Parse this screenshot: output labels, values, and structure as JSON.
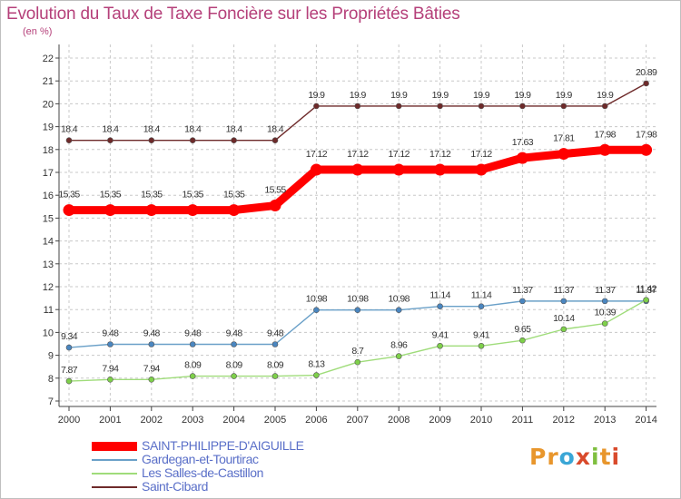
{
  "header": {
    "title": "Evolution du Taux de Taxe Foncière sur les Propriétés Bâties",
    "unit": "(en %)"
  },
  "colors": {
    "title": "#b5407a",
    "grid": "#c8c8c8",
    "axis": "#444444",
    "legend_text": "#5a6fc8"
  },
  "logo": {
    "letters": [
      "P",
      "r",
      "o",
      "x",
      "i",
      "t",
      "i"
    ],
    "colors": [
      "#e8962c",
      "#e8962c",
      "#3aa6d6",
      "#d94a2b",
      "#7fbf3f",
      "#e8962c",
      "#d94a2b"
    ]
  },
  "chart_data": {
    "type": "line",
    "title": "Evolution du Taux de Taxe Foncière sur les Propriétés Bâties",
    "ylabel": "(en %)",
    "xlabel": "",
    "ylim": [
      7,
      22
    ],
    "yticks": [
      7,
      8,
      9,
      10,
      11,
      12,
      13,
      14,
      15,
      16,
      17,
      18,
      19,
      20,
      21,
      22
    ],
    "grid": true,
    "categories": [
      "2000",
      "2001",
      "2002",
      "2003",
      "2004",
      "2005",
      "2006",
      "2007",
      "2008",
      "2009",
      "2010",
      "2011",
      "2012",
      "2013",
      "2014"
    ],
    "series": [
      {
        "name": "SAINT-PHILIPPE-D'AIGUILLE",
        "color": "#ff0000",
        "marker": "#ff0000",
        "style": "thick",
        "values": [
          15.35,
          15.35,
          15.35,
          15.35,
          15.35,
          15.55,
          17.12,
          17.12,
          17.12,
          17.12,
          17.12,
          17.63,
          17.81,
          17.98,
          17.98
        ],
        "labels": [
          "15.35",
          "15.35",
          "15.35",
          "15.35",
          "15.35",
          "15.55",
          "17.12",
          "17.12",
          "17.12",
          "17.12",
          "17.12",
          "17.63",
          "17.81",
          "17.98",
          "17.98"
        ]
      },
      {
        "name": "Gardegan-et-Tourtirac",
        "color": "#6aa0c8",
        "marker": "#4a86c0",
        "style": "normal",
        "values": [
          9.34,
          9.48,
          9.48,
          9.48,
          9.48,
          9.48,
          10.98,
          10.98,
          10.98,
          11.14,
          11.14,
          11.37,
          11.37,
          11.37,
          11.37
        ],
        "labels": [
          "9.34",
          "9.48",
          "9.48",
          "9.48",
          "9.48",
          "9.48",
          "10.98",
          "10.98",
          "10.98",
          "11.14",
          "11.14",
          "11.37",
          "11.37",
          "11.37",
          "11.37"
        ]
      },
      {
        "name": "Les Salles-de-Castillon",
        "color": "#9fdc7a",
        "marker": "#7ed04a",
        "style": "normal",
        "values": [
          7.87,
          7.94,
          7.94,
          8.09,
          8.09,
          8.09,
          8.13,
          8.7,
          8.96,
          9.41,
          9.41,
          9.65,
          10.14,
          10.39,
          11.42
        ],
        "labels": [
          "7.87",
          "7.94",
          "7.94",
          "8.09",
          "8.09",
          "8.09",
          "8.13",
          "8.7",
          "8.96",
          "9.41",
          "9.41",
          "9.65",
          "10.14",
          "10.39",
          "11.42"
        ]
      },
      {
        "name": "Saint-Cibard",
        "color": "#6e2a2a",
        "marker": "#6e2a2a",
        "style": "normal",
        "values": [
          18.4,
          18.4,
          18.4,
          18.4,
          18.4,
          18.4,
          19.9,
          19.9,
          19.9,
          19.9,
          19.9,
          19.9,
          19.9,
          19.9,
          20.89
        ],
        "labels": [
          "18.4",
          "18.4",
          "18.4",
          "18.4",
          "18.4",
          "18.4",
          "19.9",
          "19.9",
          "19.9",
          "19.9",
          "19.9",
          "19.9",
          "19.9",
          "19.9",
          "20.89"
        ]
      }
    ]
  }
}
